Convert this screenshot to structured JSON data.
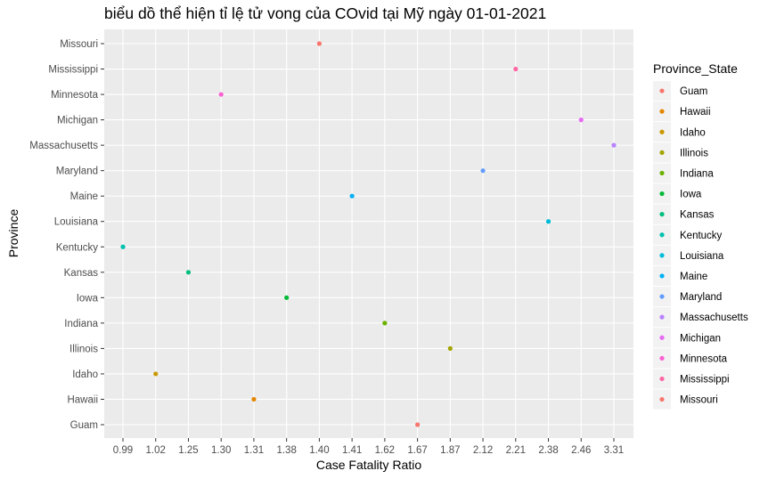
{
  "chart_data": {
    "type": "scatter",
    "title": "biểu dồ thể hiện tỉ lệ tử vong của COvid tại Mỹ ngày 01-01-2021",
    "xlabel": "Case Fatality Ratio",
    "ylabel": "Province",
    "x_categories": [
      "0.99",
      "1.02",
      "1.25",
      "1.30",
      "1.31",
      "1.38",
      "1.40",
      "1.41",
      "1.62",
      "1.67",
      "1.87",
      "2.12",
      "2.21",
      "2.38",
      "2.46",
      "3.31"
    ],
    "y_categories": [
      "Guam",
      "Hawaii",
      "Idaho",
      "Illinois",
      "Indiana",
      "Iowa",
      "Kansas",
      "Kentucky",
      "Louisiana",
      "Maine",
      "Maryland",
      "Massachusetts",
      "Michigan",
      "Minnesota",
      "Mississippi",
      "Missouri"
    ],
    "points": [
      {
        "province": "Guam",
        "x": "1.67",
        "color": "#F8766D"
      },
      {
        "province": "Hawaii",
        "x": "1.31",
        "color": "#E58700"
      },
      {
        "province": "Idaho",
        "x": "1.02",
        "color": "#C99800"
      },
      {
        "province": "Illinois",
        "x": "1.87",
        "color": "#A3A500"
      },
      {
        "province": "Indiana",
        "x": "1.62",
        "color": "#6BB100"
      },
      {
        "province": "Iowa",
        "x": "1.38",
        "color": "#00BA38"
      },
      {
        "province": "Kansas",
        "x": "1.25",
        "color": "#00BF7D"
      },
      {
        "province": "Kentucky",
        "x": "0.99",
        "color": "#00C0AF"
      },
      {
        "province": "Louisiana",
        "x": "2.38",
        "color": "#00BCD8"
      },
      {
        "province": "Maine",
        "x": "1.41",
        "color": "#00B0F6"
      },
      {
        "province": "Maryland",
        "x": "2.12",
        "color": "#619CFF"
      },
      {
        "province": "Massachusetts",
        "x": "3.31",
        "color": "#B983FF"
      },
      {
        "province": "Michigan",
        "x": "2.46",
        "color": "#E76BF3"
      },
      {
        "province": "Minnesota",
        "x": "1.30",
        "color": "#FD61D1"
      },
      {
        "province": "Mississippi",
        "x": "2.21",
        "color": "#FF67A4"
      },
      {
        "province": "Missouri",
        "x": "1.40",
        "color": "#F8766D"
      }
    ],
    "legend": {
      "title": "Province_State",
      "position": "right",
      "entries": [
        {
          "label": "Guam",
          "color": "#F8766D"
        },
        {
          "label": "Hawaii",
          "color": "#E58700"
        },
        {
          "label": "Idaho",
          "color": "#C99800"
        },
        {
          "label": "Illinois",
          "color": "#A3A500"
        },
        {
          "label": "Indiana",
          "color": "#6BB100"
        },
        {
          "label": "Iowa",
          "color": "#00BA38"
        },
        {
          "label": "Kansas",
          "color": "#00BF7D"
        },
        {
          "label": "Kentucky",
          "color": "#00C0AF"
        },
        {
          "label": "Louisiana",
          "color": "#00BCD8"
        },
        {
          "label": "Maine",
          "color": "#00B0F6"
        },
        {
          "label": "Maryland",
          "color": "#619CFF"
        },
        {
          "label": "Massachusetts",
          "color": "#B983FF"
        },
        {
          "label": "Michigan",
          "color": "#E76BF3"
        },
        {
          "label": "Minnesota",
          "color": "#FD61D1"
        },
        {
          "label": "Mississippi",
          "color": "#FF67A4"
        },
        {
          "label": "Missouri",
          "color": "#F8766D"
        }
      ]
    },
    "panel_background": "#EBEBEB",
    "grid_color": "#FFFFFF",
    "grid": true
  }
}
